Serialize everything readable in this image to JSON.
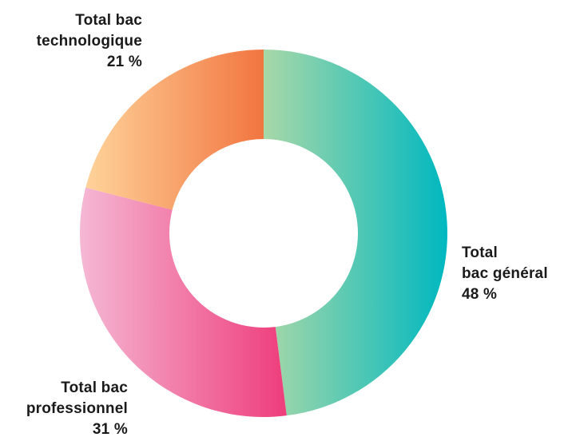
{
  "chart_data": {
    "type": "pie",
    "donut": true,
    "slices": [
      {
        "label_lines": [
          "Total",
          "bac général",
          "48 %"
        ],
        "value": 48,
        "gradient": [
          "#a8d8a8",
          "#00b8c0"
        ]
      },
      {
        "label_lines": [
          "Total bac",
          "professionnel",
          "31 %"
        ],
        "value": 31,
        "gradient": [
          "#f5b8d4",
          "#ee3d7b"
        ]
      },
      {
        "label_lines": [
          "Total bac",
          "technologique",
          "21 %"
        ],
        "value": 21,
        "gradient": [
          "#fed39a",
          "#f27540"
        ]
      }
    ]
  }
}
